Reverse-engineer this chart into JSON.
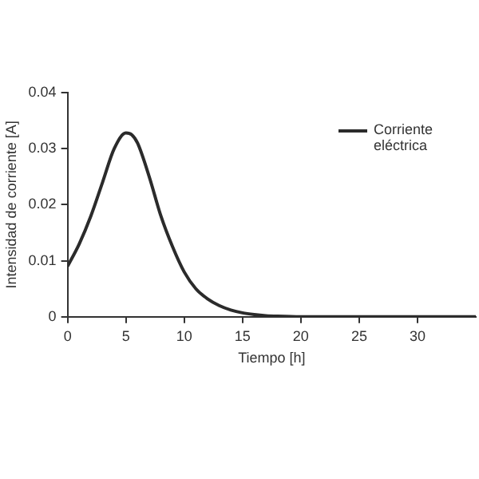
{
  "chart_data": {
    "type": "line",
    "xlabel": "Tiempo [h]",
    "ylabel": "Intensidad de corriente [A]",
    "x": [
      0,
      1,
      2,
      3,
      4,
      5,
      5.5,
      6,
      7,
      8,
      9,
      10,
      11,
      12,
      13,
      14,
      15,
      16,
      17,
      18,
      20,
      25,
      30,
      35
    ],
    "series": [
      {
        "name": "Corriente eléctrica",
        "color": "#2b2b2b",
        "values": [
          0.009,
          0.013,
          0.018,
          0.024,
          0.03,
          0.0328,
          0.0325,
          0.031,
          0.025,
          0.018,
          0.0125,
          0.008,
          0.005,
          0.0032,
          0.002,
          0.0012,
          0.0007,
          0.0004,
          0.0002,
          0.0001,
          0,
          0,
          0,
          0
        ]
      }
    ],
    "xlim": [
      0,
      35
    ],
    "xticks": [
      0,
      5,
      10,
      15,
      20,
      25,
      30
    ],
    "ylim": [
      0,
      0.04
    ],
    "yticks": [
      0,
      0.01,
      0.02,
      0.03,
      0.04
    ],
    "grid": false,
    "legend": "top right",
    "marker": "none",
    "line_style": "solid"
  }
}
